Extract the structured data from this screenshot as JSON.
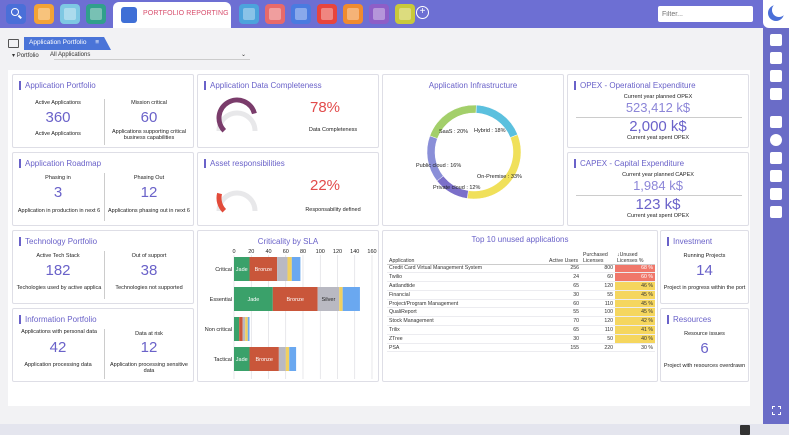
{
  "toolbar": {
    "active_tab_label": "PORTFOLIO REPORTING",
    "filter_placeholder": "Filter...",
    "colors": {
      "bar": "#6d6fd3",
      "search": "#4a6fd8"
    },
    "tab_icons": [
      {
        "name": "home-icon",
        "color": "#f3a336"
      },
      {
        "name": "lightbulb-icon",
        "color": "#7ec8e3"
      },
      {
        "name": "upload-icon",
        "color": "#30a08c"
      },
      {
        "name": "pie-chart-icon",
        "color": "#4ca3dc"
      },
      {
        "name": "eject-icon",
        "color": "#e86a6a"
      },
      {
        "name": "shapes-icon",
        "color": "#4a7be0"
      },
      {
        "name": "folder-icon",
        "color": "#e8453c"
      },
      {
        "name": "people-icon",
        "color": "#f08b2e"
      },
      {
        "name": "gear-icon",
        "color": "#8e5ec7"
      },
      {
        "name": "badge-icon",
        "color": "#c9c93a"
      }
    ]
  },
  "subbar": {
    "app_tab": "Application Portfolio",
    "portfolio_label": "Portfolio",
    "portfolio_value": "All Applications"
  },
  "cards": {
    "app_portfolio": {
      "title": "Application Portfolio",
      "left_label": "Active Applications",
      "left_value": "360",
      "left_sub": "Active Applications",
      "right_label": "Mission critical",
      "right_value": "60",
      "right_sub": "Applications supporting critical business capabilities"
    },
    "data_completeness": {
      "title": "Application Data Completeness",
      "value": "78%",
      "sub": "Data Completeness",
      "gauge_fraction": 0.78
    },
    "asset_resp": {
      "title": "Asset responsibilities",
      "value": "22%",
      "sub": "Responsability defined",
      "gauge_fraction": 0.22
    },
    "infrastructure": {
      "title": "Application Infrastructure",
      "labels": {
        "saas": "SaaS : 20%",
        "hybrid": "Hybrid : 18%",
        "public": "Public cloud : 16%",
        "onprem": "On-Premise : 33%",
        "private": "Private cloud : 12%"
      }
    },
    "opex": {
      "title": "OPEX - Operational Expenditure",
      "top_label": "Current year planned OPEX",
      "top_value": "523,412 k$",
      "bottom_value": "2,000 k$",
      "bottom_label": "Current yeat spent OPEX"
    },
    "capex": {
      "title": "CAPEX - Capital Expenditure",
      "top_label": "Current year planned CAPEX",
      "top_value": "1,984 k$",
      "bottom_value": "123 k$",
      "bottom_label": "Current yeat spent OPEX"
    },
    "roadmap": {
      "title": "Application Roadmap",
      "left_label": "Phasing in",
      "left_value": "3",
      "left_sub": "Application in production in next 6",
      "right_label": "Phasing Out",
      "right_value": "12",
      "right_sub": "Applications phasing out in next 6"
    },
    "tech": {
      "title": "Technology Portfolio",
      "left_label": "Active Tech Stack",
      "left_value": "182",
      "left_sub": "Techologies used by active applica",
      "right_label": "Out of support",
      "right_value": "38",
      "right_sub": "Technologies not supported"
    },
    "info": {
      "title": "Information Portfolio",
      "left_label": "Applications with personal data",
      "left_value": "42",
      "left_sub": "Application processing data",
      "right_label": "Data at risk",
      "right_value": "12",
      "right_sub": "Application processing sensitive data"
    },
    "sla": {
      "title": "Criticality by SLA"
    },
    "top10": {
      "title": "Top 10 unused applications"
    },
    "investment": {
      "title": "Investment",
      "label": "Running Projects",
      "value": "14",
      "sub": "Project in progress within the port"
    },
    "resources": {
      "title": "Resources",
      "label": "Resource issues",
      "value": "6",
      "sub": "Project with resources overdrawn"
    }
  },
  "chart_data": [
    {
      "type": "pie",
      "title": "Application Infrastructure",
      "categories": [
        "Hybrid",
        "On-Premise",
        "Private cloud",
        "Public cloud",
        "SaaS"
      ],
      "values": [
        18,
        33,
        12,
        16,
        20
      ],
      "colors": [
        "#5bc0de",
        "#f0e05a",
        "#7b6fc9",
        "#8a8fd8",
        "#a3cf6a"
      ]
    },
    {
      "type": "bar",
      "title": "Criticality by SLA",
      "orientation": "horizontal",
      "stacked": true,
      "categories": [
        "Critical",
        "Essential",
        "Non critical",
        "Tactical"
      ],
      "xlim": [
        0,
        160
      ],
      "xticks": [
        "0",
        "20",
        "40",
        "60",
        "80",
        "100",
        "120",
        "140",
        "160"
      ],
      "series": [
        {
          "name": "Jade",
          "color": "#3aa16a",
          "values": [
            18,
            45,
            6,
            18
          ]
        },
        {
          "name": "Bronze",
          "color": "#c9563a",
          "values": [
            32,
            52,
            4,
            34
          ]
        },
        {
          "name": "Silver",
          "color": "#b9b9c2",
          "values": [
            12,
            25,
            3,
            8
          ]
        },
        {
          "name": "",
          "color": "#f0d060",
          "values": [
            5,
            4,
            3,
            4
          ]
        },
        {
          "name": "",
          "color": "#6aa8f0",
          "values": [
            10,
            20,
            2,
            8
          ]
        }
      ],
      "show_labels": [
        [
          true,
          true,
          false,
          false,
          false
        ],
        [
          true,
          true,
          true,
          false,
          false
        ],
        [
          false,
          false,
          false,
          false,
          false
        ],
        [
          true,
          true,
          false,
          false,
          false
        ]
      ]
    },
    {
      "type": "table",
      "title": "Top 10 unused applications",
      "columns": [
        "Application",
        "Active Users",
        "Purchased Licenses",
        "↓Unused Licenses %"
      ],
      "rows": [
        [
          "Credit Card Virtual Management System",
          "256",
          "800",
          "68 %"
        ],
        [
          "Twilio",
          "24",
          "60",
          "60 %"
        ],
        [
          "Aatlandtide",
          "65",
          "120",
          "46 %"
        ],
        [
          "Financial",
          "30",
          "55",
          "45 %"
        ],
        [
          "Project/Program Management",
          "60",
          "110",
          "45 %"
        ],
        [
          "QualiReport",
          "55",
          "100",
          "45 %"
        ],
        [
          "Stock Management",
          "70",
          "120",
          "42 %"
        ],
        [
          "Trilix",
          "65",
          "110",
          "41 %"
        ],
        [
          "ZTree",
          "30",
          "50",
          "40 %"
        ],
        [
          "PSA",
          "155",
          "220",
          "30 %"
        ]
      ],
      "highlight": [
        "#f0776a",
        "#f0776a",
        "#f5d65e",
        "#f5d65e",
        "#f5d65e",
        "#f5d65e",
        "#f5d65e",
        "#f5d65e",
        "#f5d65e",
        "#ffffff"
      ]
    }
  ]
}
